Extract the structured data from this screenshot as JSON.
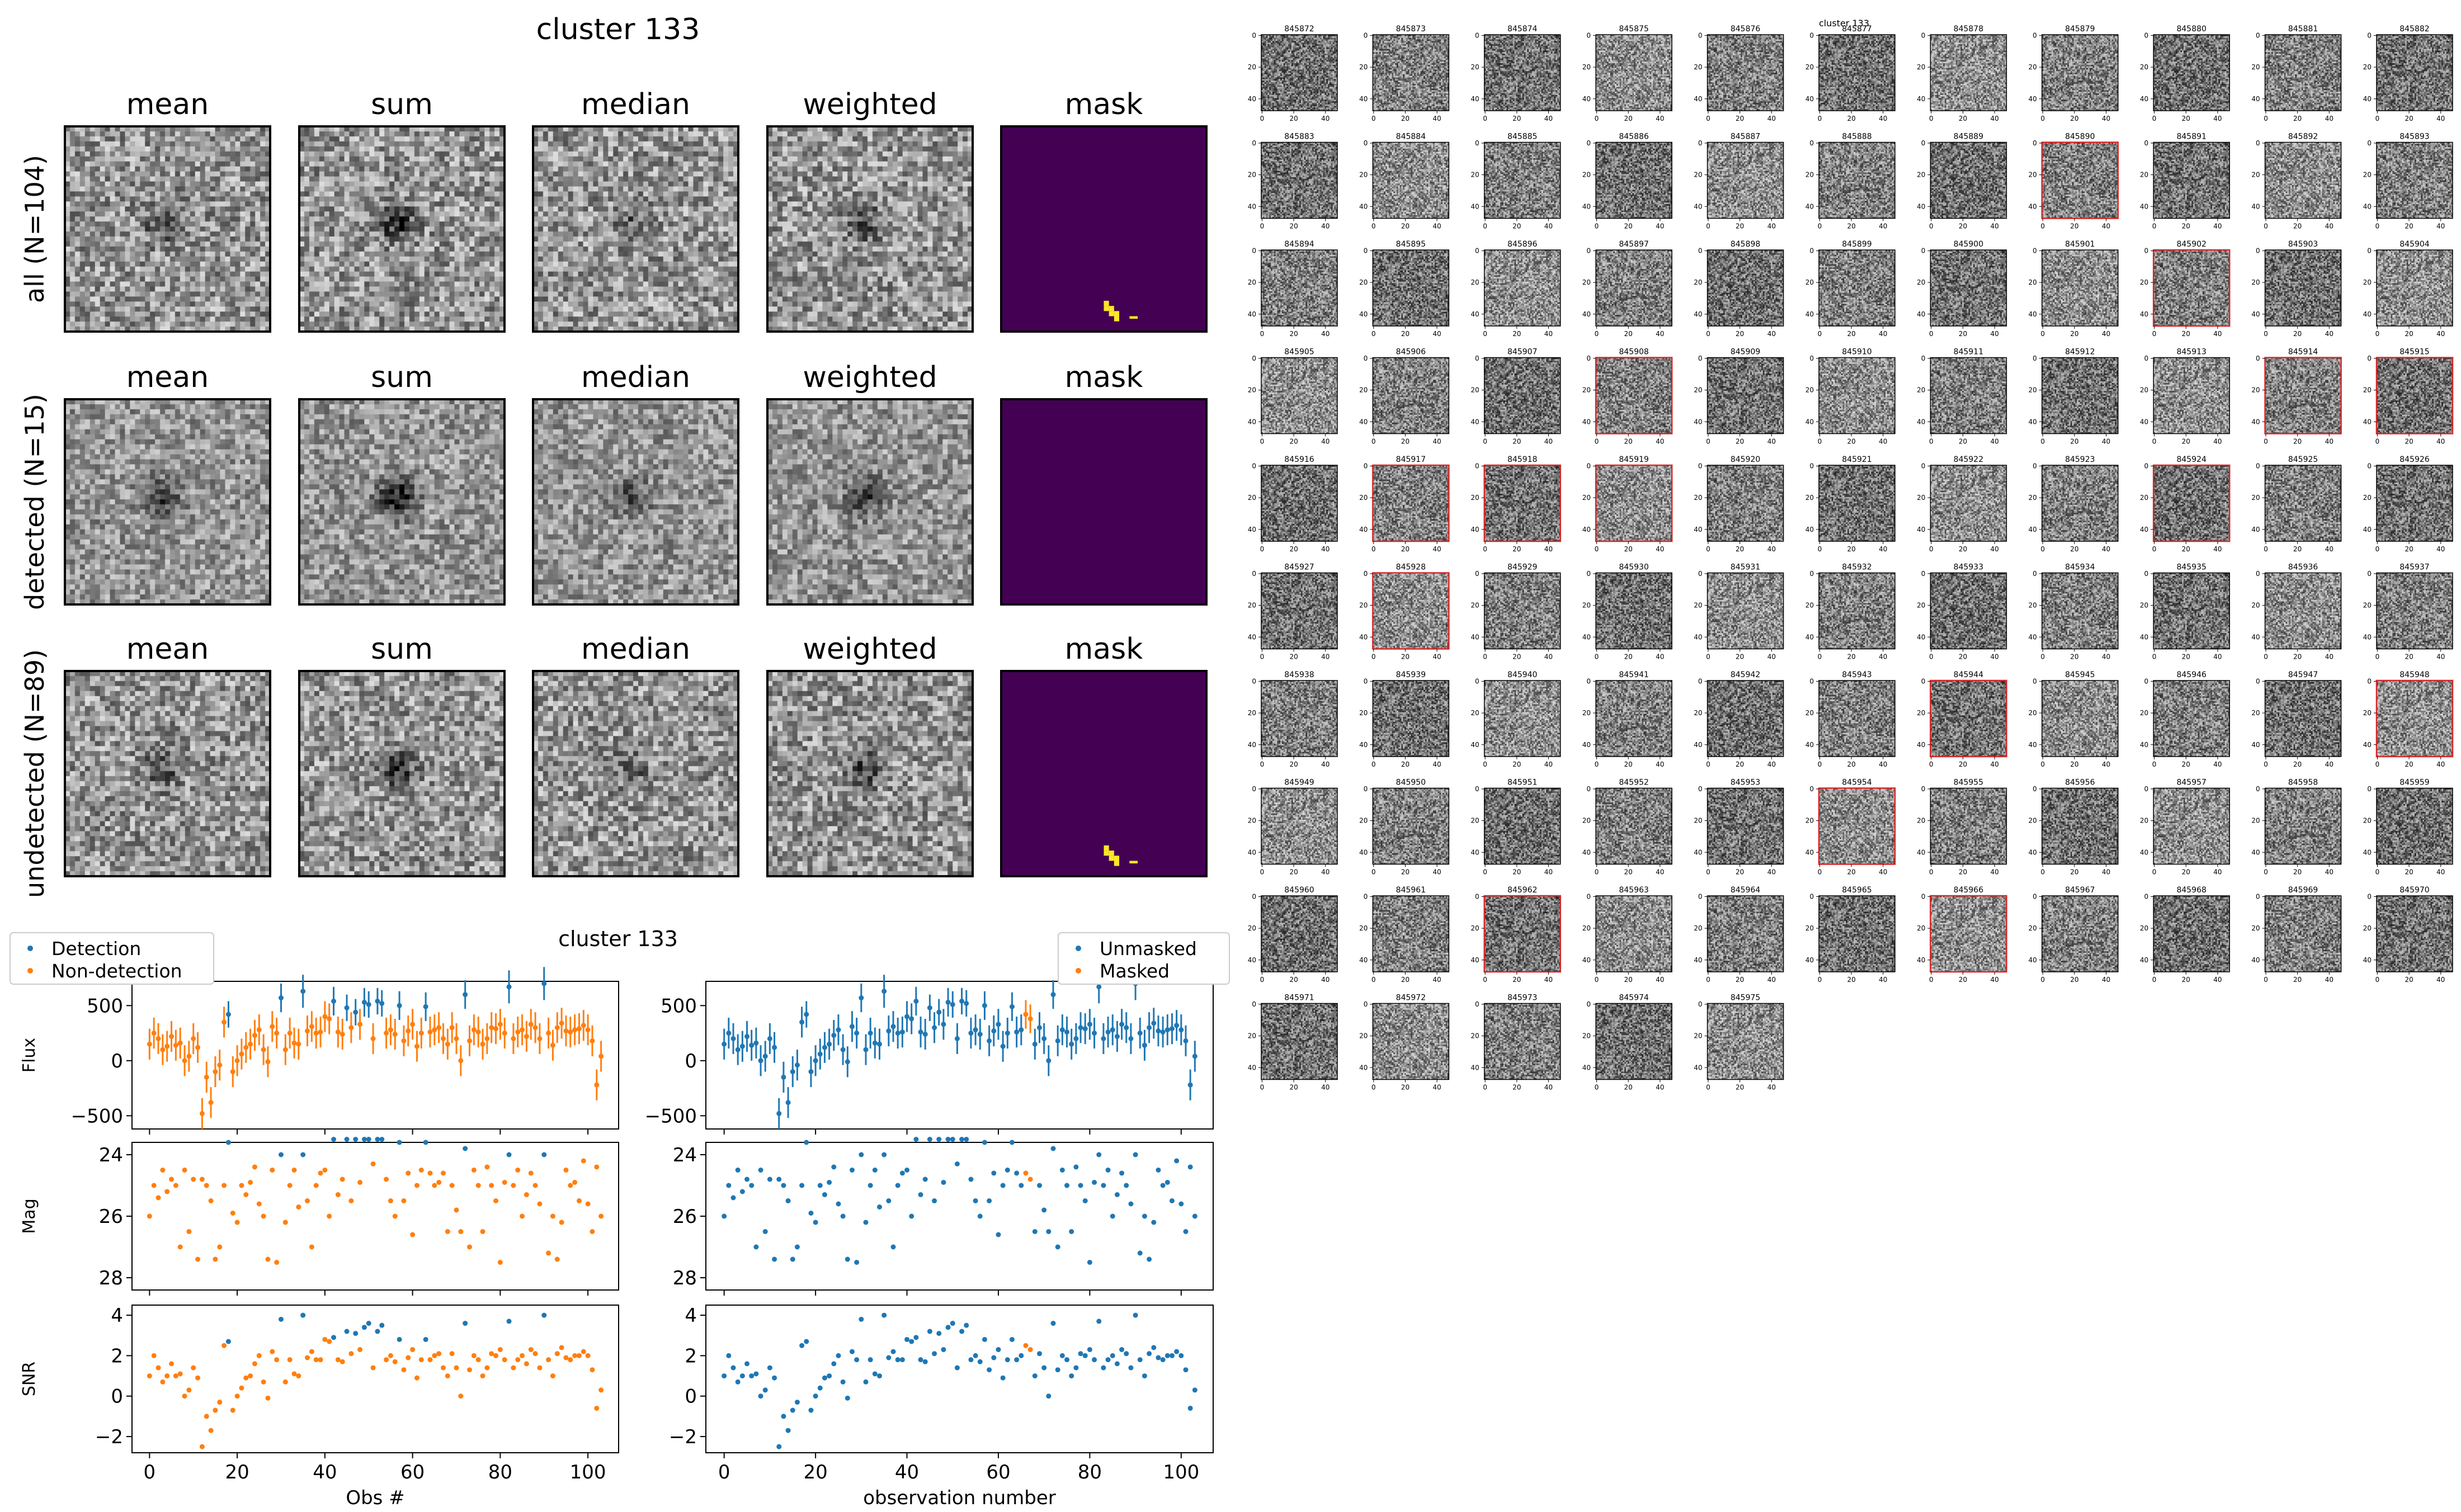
{
  "stack_figure": {
    "title": "cluster 133",
    "column_titles": [
      "mean",
      "sum",
      "median",
      "weighted",
      "mask"
    ],
    "rows": [
      {
        "label": "all (N=104)",
        "kind": "all",
        "mask": "few"
      },
      {
        "label": "detected (N=15)",
        "kind": "detected",
        "mask": "none"
      },
      {
        "label": "undetected (N=89)",
        "kind": "undetected",
        "mask": "few"
      }
    ],
    "colors": {
      "mask_bg": "#440154",
      "mask_fg": "#fde725",
      "frame": "#000000"
    }
  },
  "grid_figure": {
    "title": "cluster 133",
    "stamp_ids": [
      "845872",
      "845873",
      "845874",
      "845875",
      "845876",
      "845877",
      "845878",
      "845879",
      "845880",
      "845881",
      "845882",
      "845883",
      "845884",
      "845885",
      "845886",
      "845887",
      "845888",
      "845889",
      "845890",
      "845891",
      "845892",
      "845893",
      "845894",
      "845895",
      "845896",
      "845897",
      "845898",
      "845899",
      "845900",
      "845901",
      "845902",
      "845903",
      "845904",
      "845905",
      "845906",
      "845907",
      "845908",
      "845909",
      "845910",
      "845911",
      "845912",
      "845913",
      "845914",
      "845915",
      "845916",
      "845917",
      "845918",
      "845919",
      "845920",
      "845921",
      "845922",
      "845923",
      "845924",
      "845925",
      "845926",
      "845927",
      "845928",
      "845929",
      "845930",
      "845931",
      "845932",
      "845933",
      "845934",
      "845935",
      "845936",
      "845937",
      "845938",
      "845939",
      "845940",
      "845941",
      "845942",
      "845943",
      "845944",
      "845945",
      "845946",
      "845947",
      "845948",
      "845949",
      "845950",
      "845951",
      "845952",
      "845953",
      "845954",
      "845955",
      "845956",
      "845957",
      "845958",
      "845959",
      "845960",
      "845961",
      "845962",
      "845963",
      "845964",
      "845965",
      "845966",
      "845967",
      "845968",
      "845969",
      "845970",
      "845971",
      "845972",
      "845973",
      "845974",
      "845975"
    ],
    "highlighted_ids": [
      "845890",
      "845902",
      "845908",
      "845914",
      "845915",
      "845917",
      "845918",
      "845919",
      "845924",
      "845928",
      "845944",
      "845948",
      "845954",
      "845962",
      "845966"
    ],
    "axis_ticks": [
      "0",
      "20",
      "40"
    ],
    "colors": {
      "highlight": "#d62728"
    }
  },
  "chart_data": [
    {
      "type": "scatter",
      "title": "cluster 133",
      "xlabel": "Obs #",
      "xlim": [
        -4,
        107
      ],
      "x_ticks": [
        0,
        20,
        40,
        60,
        80,
        100
      ],
      "legend": {
        "placement": "top-left",
        "entries": [
          "Detection",
          "Non-detection"
        ]
      },
      "series_colors": {
        "Detection": "#1f77b4",
        "Non-detection": "#ff7f0e"
      },
      "panels": [
        {
          "ylabel": "Flux",
          "ylim": [
            -620,
            720
          ],
          "y_ticks": [
            500,
            0,
            -500
          ],
          "y_tick_labels": [
            "500",
            "0",
            "−500"
          ],
          "field": "flux",
          "errorbars": true
        },
        {
          "ylabel": "Mag",
          "ylim": [
            28.4,
            23.6
          ],
          "y_ticks": [
            24,
            26,
            28
          ],
          "y_tick_labels": [
            "24",
            "26",
            "28"
          ],
          "field": "mag",
          "errorbars": false
        },
        {
          "ylabel": "SNR",
          "ylim": [
            -2.8,
            4.5
          ],
          "y_ticks": [
            4,
            2,
            0,
            -2
          ],
          "y_tick_labels": [
            "4",
            "2",
            "0",
            "−2"
          ],
          "field": "snr",
          "errorbars": false
        }
      ],
      "series": [
        {
          "name": "Detection",
          "x": [
            18,
            30,
            35,
            42,
            45,
            47,
            49,
            50,
            52,
            53,
            57,
            63,
            72,
            82,
            90
          ],
          "flux": [
            420,
            570,
            630,
            540,
            480,
            440,
            530,
            510,
            540,
            520,
            500,
            490,
            600,
            670,
            700
          ],
          "flux_err": [
            120,
            130,
            150,
            130,
            120,
            120,
            130,
            120,
            120,
            120,
            130,
            130,
            130,
            150,
            150
          ],
          "mag": [
            23.6,
            24.0,
            24.0,
            23.5,
            23.5,
            23.5,
            23.5,
            23.5,
            23.5,
            23.5,
            23.6,
            23.6,
            23.8,
            24.0,
            24.0
          ],
          "snr": [
            2.7,
            3.8,
            4.0,
            2.9,
            3.2,
            3.1,
            3.4,
            3.6,
            3.2,
            3.5,
            2.8,
            2.8,
            3.6,
            3.7,
            4.0
          ]
        },
        {
          "name": "Non-detection",
          "x": [
            0,
            1,
            2,
            3,
            4,
            5,
            6,
            7,
            8,
            9,
            10,
            11,
            12,
            13,
            14,
            15,
            16,
            17,
            19,
            20,
            21,
            22,
            23,
            24,
            25,
            26,
            27,
            28,
            29,
            31,
            32,
            33,
            34,
            36,
            37,
            38,
            39,
            40,
            41,
            43,
            44,
            46,
            48,
            51,
            54,
            55,
            56,
            58,
            59,
            60,
            61,
            62,
            64,
            65,
            66,
            67,
            68,
            69,
            70,
            71,
            73,
            74,
            75,
            76,
            77,
            78,
            79,
            80,
            81,
            83,
            84,
            85,
            86,
            87,
            88,
            89,
            91,
            92,
            93,
            94,
            95,
            96,
            97,
            98,
            99,
            100,
            101,
            102,
            103
          ],
          "flux": [
            150,
            250,
            200,
            100,
            130,
            220,
            140,
            160,
            0,
            40,
            200,
            120,
            -480,
            -150,
            -380,
            -100,
            -40,
            350,
            -100,
            0,
            60,
            120,
            150,
            230,
            280,
            100,
            -10,
            310,
            250,
            100,
            250,
            160,
            150,
            270,
            310,
            250,
            260,
            400,
            380,
            260,
            240,
            300,
            330,
            200,
            250,
            280,
            240,
            180,
            270,
            330,
            130,
            250,
            260,
            280,
            300,
            200,
            150,
            300,
            200,
            0,
            180,
            280,
            260,
            150,
            200,
            300,
            290,
            330,
            250,
            200,
            260,
            280,
            220,
            330,
            300,
            200,
            250,
            140,
            300,
            340,
            270,
            260,
            280,
            290,
            320,
            280,
            180,
            -220,
            40
          ],
          "flux_err": [
            140,
            140,
            140,
            140,
            140,
            140,
            140,
            140,
            140,
            140,
            140,
            140,
            140,
            140,
            140,
            140,
            140,
            140,
            140,
            140,
            140,
            140,
            140,
            140,
            140,
            140,
            140,
            140,
            140,
            140,
            140,
            140,
            140,
            140,
            140,
            140,
            140,
            140,
            140,
            140,
            140,
            140,
            140,
            140,
            140,
            140,
            140,
            140,
            140,
            140,
            140,
            140,
            140,
            140,
            140,
            140,
            140,
            140,
            140,
            140,
            140,
            140,
            140,
            140,
            140,
            140,
            140,
            140,
            140,
            140,
            140,
            140,
            140,
            140,
            140,
            140,
            140,
            140,
            140,
            140,
            140,
            140,
            140,
            140,
            140,
            140,
            140,
            140,
            140
          ],
          "mag": [
            26.0,
            25.0,
            25.4,
            24.5,
            25.2,
            24.8,
            25.0,
            27.0,
            24.5,
            26.5,
            24.8,
            27.4,
            24.8,
            25.0,
            25.5,
            27.4,
            27.0,
            25.0,
            25.9,
            26.2,
            25.0,
            25.3,
            24.9,
            24.4,
            25.6,
            26.0,
            27.4,
            24.5,
            27.5,
            26.2,
            25.0,
            24.5,
            25.7,
            25.5,
            27.0,
            25.0,
            24.6,
            24.5,
            26.0,
            25.3,
            24.8,
            25.5,
            24.9,
            24.3,
            24.8,
            25.5,
            26.0,
            25.5,
            24.6,
            26.6,
            25.0,
            24.5,
            24.6,
            25.0,
            24.9,
            24.6,
            26.5,
            25.0,
            25.8,
            26.5,
            27.0,
            24.5,
            25.0,
            26.5,
            24.4,
            25.0,
            25.5,
            27.5,
            24.9,
            25.0,
            24.5,
            26.0,
            25.3,
            24.6,
            25.0,
            25.6,
            27.2,
            26.0,
            27.4,
            26.2,
            24.5,
            25.0,
            24.9,
            25.5,
            24.2,
            25.6,
            26.5,
            24.4,
            26.0
          ],
          "snr": [
            1.0,
            2.0,
            1.4,
            0.7,
            1.0,
            1.6,
            1.0,
            1.1,
            0.0,
            0.3,
            1.4,
            0.9,
            -2.5,
            -1.0,
            -1.7,
            -0.7,
            -0.3,
            2.5,
            -0.7,
            0.0,
            0.4,
            0.9,
            1.0,
            1.6,
            2.0,
            0.7,
            -0.1,
            2.2,
            1.8,
            0.7,
            1.8,
            1.1,
            1.0,
            1.9,
            2.2,
            1.8,
            1.8,
            2.8,
            2.7,
            1.8,
            1.7,
            2.1,
            2.3,
            1.4,
            1.8,
            2.0,
            1.7,
            1.3,
            1.9,
            2.3,
            0.9,
            1.8,
            1.8,
            2.0,
            2.1,
            1.4,
            1.0,
            2.1,
            1.4,
            0.0,
            1.3,
            2.0,
            1.8,
            1.0,
            1.4,
            2.1,
            2.0,
            2.3,
            1.8,
            1.4,
            1.8,
            2.0,
            1.6,
            2.3,
            2.1,
            1.4,
            1.8,
            1.0,
            2.1,
            2.4,
            1.9,
            1.8,
            2.0,
            2.0,
            2.2,
            2.0,
            1.3,
            -0.6,
            0.3
          ]
        }
      ]
    },
    {
      "type": "scatter",
      "title": "",
      "xlabel": "observation number",
      "xlim": [
        -4,
        107
      ],
      "x_ticks": [
        0,
        20,
        40,
        60,
        80,
        100
      ],
      "legend": {
        "placement": "top-right",
        "entries": [
          "Unmasked",
          "Masked"
        ]
      },
      "series_colors": {
        "Unmasked": "#1f77b4",
        "Masked": "#ff7f0e"
      },
      "panels": [
        {
          "ylabel": "",
          "ylim": [
            -620,
            720
          ],
          "y_ticks": [
            500,
            0,
            -500
          ],
          "y_tick_labels": [
            "500",
            "0",
            "−500"
          ],
          "field": "flux",
          "errorbars": true
        },
        {
          "ylabel": "",
          "ylim": [
            28.4,
            23.6
          ],
          "y_ticks": [
            24,
            26,
            28
          ],
          "y_tick_labels": [
            "24",
            "26",
            "28"
          ],
          "field": "mag",
          "errorbars": false
        },
        {
          "ylabel": "",
          "ylim": [
            -2.8,
            4.5
          ],
          "y_ticks": [
            4,
            2,
            0,
            -2
          ],
          "y_tick_labels": [
            "4",
            "2",
            "0",
            "−2"
          ],
          "field": "snr",
          "errorbars": false
        }
      ],
      "series": [
        {
          "name": "Unmasked",
          "source": "all_except_masked"
        },
        {
          "name": "Masked",
          "x": [
            66,
            67
          ],
          "flux": [
            420,
            380
          ],
          "flux_err": [
            130,
            130
          ],
          "mag": [
            24.6,
            24.8
          ],
          "snr": [
            2.5,
            2.3
          ]
        }
      ]
    }
  ]
}
